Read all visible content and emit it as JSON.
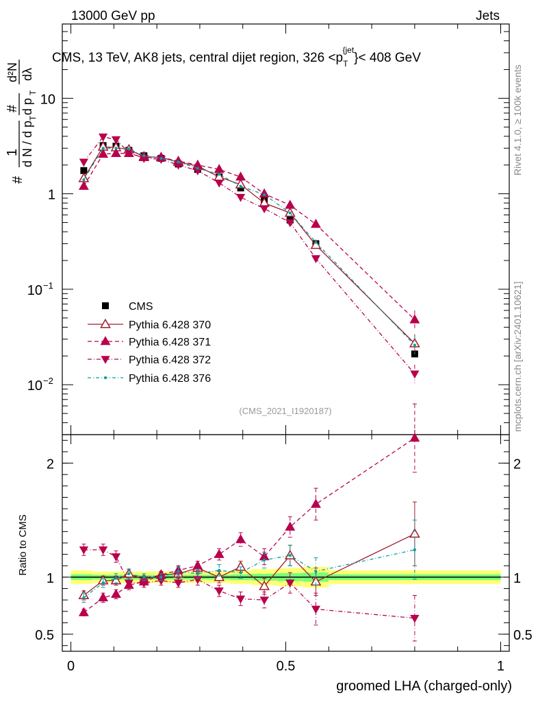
{
  "header": {
    "left": "13000 GeV pp",
    "right": "Jets"
  },
  "side_text": {
    "rivet": "Rivet 4.1.0, ≥ 100k events",
    "mcplots": "mcplots.cern.ch [arXiv:2401.10621]"
  },
  "colors": {
    "cms": "#000000",
    "p370": "#a01c2a",
    "p371": "#b8004c",
    "p372": "#b8004c",
    "p376": "#00a0a0",
    "band_outer": "#ffff77",
    "band_inner": "#77ff77"
  },
  "chart_data": [
    {
      "type": "line",
      "title": "CMS, 13 TeV, AK8 jets, central dijet region, 326 <p_T^{jet}< 408 GeV",
      "title_parts": {
        "main": "CMS, 13 TeV, AK8 jets, central dijet region, 326 <p",
        "sub": "T",
        "sup": "{jet",
        "close": "}< 408 GeV"
      },
      "ylabel_parts": [
        "#",
        "1",
        "d N / d p",
        "T",
        "#",
        "d p",
        "T",
        "d²N",
        "dλ"
      ],
      "xlabel": "groomed LHA (charged-only)",
      "yscale": "log",
      "ylim": [
        0.003,
        60
      ],
      "xlim": [
        -0.02,
        1.02
      ],
      "yticks": [
        {
          "v": 0.01,
          "base": "10",
          "exp": "−2"
        },
        {
          "v": 0.1,
          "base": "10",
          "exp": "−1"
        },
        {
          "v": 1,
          "base": "1",
          "exp": ""
        },
        {
          "v": 10,
          "base": "10",
          "exp": ""
        }
      ],
      "watermark": "(CMS_2021_I1920187)",
      "x": [
        0.03,
        0.075,
        0.105,
        0.135,
        0.17,
        0.21,
        0.25,
        0.295,
        0.345,
        0.395,
        0.45,
        0.51,
        0.57,
        0.8
      ],
      "series": [
        {
          "name": "CMS",
          "key": "cms",
          "marker": "square",
          "values": [
            1.75,
            3.2,
            3.15,
            2.85,
            2.5,
            2.35,
            2.05,
            1.8,
            1.5,
            1.15,
            0.85,
            0.53,
            0.3,
            0.021
          ]
        },
        {
          "name": "Pythia 6.428 370",
          "key": "p370",
          "marker": "triangle-up-open",
          "dash": "",
          "values": [
            1.45,
            3.1,
            3.05,
            2.9,
            2.45,
            2.4,
            2.15,
            1.95,
            1.5,
            1.25,
            0.8,
            0.63,
            0.29,
            0.027
          ]
        },
        {
          "name": "Pythia 6.428 371",
          "key": "p371",
          "marker": "triangle-up",
          "dash": "6,4",
          "values": [
            1.2,
            2.6,
            2.65,
            2.65,
            2.4,
            2.4,
            2.2,
            2.0,
            1.8,
            1.5,
            1.0,
            0.76,
            0.48,
            0.048
          ]
        },
        {
          "name": "Pythia 6.428 372",
          "key": "p372",
          "marker": "triangle-down",
          "dash": "6,3,1,3",
          "values": [
            2.15,
            3.95,
            3.7,
            2.7,
            2.35,
            2.3,
            2.0,
            1.75,
            1.3,
            0.92,
            0.7,
            0.5,
            0.21,
            0.013
          ]
        },
        {
          "name": "Pythia 6.428 376",
          "key": "p376",
          "marker": "dot",
          "dash": "5,3,1,3",
          "values": [
            1.4,
            3.0,
            3.0,
            2.95,
            2.5,
            2.35,
            2.15,
            1.85,
            1.6,
            1.2,
            0.98,
            0.63,
            0.31,
            0.026
          ]
        }
      ]
    },
    {
      "type": "line",
      "title": "",
      "ylabel": "Ratio to CMS",
      "xlabel": "groomed LHA (charged-only)",
      "ylim": [
        0.35,
        2.25
      ],
      "xlim": [
        -0.02,
        1.02
      ],
      "yticks": [
        0.5,
        1,
        2
      ],
      "ytick_labels": [
        "0.5",
        "1",
        "2"
      ],
      "xticks": [
        0,
        0.5,
        1
      ],
      "xtick_labels": [
        "0",
        "0.5",
        "1"
      ],
      "reference": 1,
      "band_edges": [
        0.0,
        0.05,
        0.09,
        0.12,
        0.15,
        0.19,
        0.23,
        0.27,
        0.32,
        0.37,
        0.42,
        0.48,
        0.54,
        0.6,
        1.0
      ],
      "band_outer": [
        0.06,
        0.05,
        0.05,
        0.05,
        0.05,
        0.05,
        0.05,
        0.05,
        0.05,
        0.06,
        0.07,
        0.08,
        0.09,
        0.06
      ],
      "band_inner": [
        0.025,
        0.02,
        0.02,
        0.02,
        0.02,
        0.02,
        0.02,
        0.02,
        0.02,
        0.025,
        0.03,
        0.035,
        0.04,
        0.025
      ],
      "x": [
        0.03,
        0.075,
        0.105,
        0.135,
        0.17,
        0.21,
        0.25,
        0.295,
        0.345,
        0.395,
        0.45,
        0.51,
        0.57,
        0.8
      ],
      "series": [
        {
          "name": "Pythia 6.428 370",
          "key": "p370",
          "marker": "triangle-up-open",
          "dash": "",
          "values": [
            0.84,
            0.97,
            0.97,
            1.03,
            0.98,
            1.02,
            1.03,
            1.08,
            1.0,
            1.09,
            0.92,
            1.19,
            0.96,
            1.38
          ],
          "errors": [
            0.04,
            0.04,
            0.04,
            0.04,
            0.03,
            0.03,
            0.04,
            0.04,
            0.05,
            0.05,
            0.07,
            0.09,
            0.12,
            0.28
          ]
        },
        {
          "name": "Pythia 6.428 371",
          "key": "p371",
          "marker": "triangle-up",
          "dash": "6,4",
          "values": [
            0.69,
            0.82,
            0.85,
            0.93,
            0.96,
            1.02,
            1.06,
            1.1,
            1.2,
            1.33,
            1.18,
            1.44,
            1.64,
            2.22
          ],
          "errors": [
            0.03,
            0.04,
            0.04,
            0.04,
            0.03,
            0.03,
            0.04,
            0.04,
            0.05,
            0.06,
            0.07,
            0.09,
            0.14,
            0.3
          ]
        },
        {
          "name": "Pythia 6.428 372",
          "key": "p372",
          "marker": "triangle-down",
          "dash": "6,3,1,3",
          "values": [
            1.24,
            1.24,
            1.18,
            0.95,
            0.95,
            0.97,
            0.95,
            0.98,
            0.88,
            0.81,
            0.8,
            0.95,
            0.72,
            0.64
          ],
          "errors": [
            0.05,
            0.05,
            0.05,
            0.04,
            0.04,
            0.04,
            0.04,
            0.05,
            0.05,
            0.06,
            0.07,
            0.09,
            0.14,
            0.2
          ]
        },
        {
          "name": "Pythia 6.428 376",
          "key": "p376",
          "marker": "dot",
          "dash": "5,3,1,3",
          "values": [
            0.82,
            0.95,
            0.99,
            1.03,
            1.0,
            1.0,
            1.05,
            1.03,
            1.06,
            1.04,
            1.15,
            1.19,
            1.05,
            1.24
          ],
          "errors": [
            0.04,
            0.04,
            0.04,
            0.04,
            0.03,
            0.03,
            0.04,
            0.04,
            0.05,
            0.05,
            0.07,
            0.09,
            0.12,
            0.26
          ]
        }
      ]
    }
  ]
}
